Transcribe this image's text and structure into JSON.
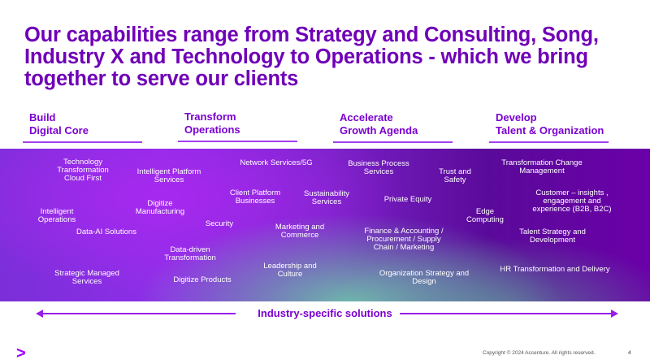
{
  "title": "Our capabilities range  from Strategy and Consulting, Song, Industry X and Technology to Operations -  which we bring together to serve our clients",
  "columns": [
    {
      "label": "Build\nDigital Core"
    },
    {
      "label": "Transform\nOperations"
    },
    {
      "label": "Accelerate\nGrowth Agenda"
    },
    {
      "label": "Develop\nTalent & Organization"
    }
  ],
  "capabilities": [
    "Technology\nTransformation\nCloud First",
    "Intelligent Platform\nServices",
    "Network Services/5G",
    "Business Process\nServices",
    "Trust and\nSafety",
    "Transformation Change\nManagement",
    "Digitize\nManufacturing",
    "Client Platform\nBusinesses",
    "Sustainability\nServices",
    "Private Equity",
    "Customer – insights ,\nengagement and\nexperience (B2B, B2C)",
    "Intelligent\nOperations",
    "Edge\nComputing",
    "Security",
    "Data-AI Solutions",
    "Marketing and\nCommerce",
    "Finance & Accounting /\nProcurement / Supply\nChain / Marketing",
    "Talent Strategy and\nDevelopment",
    "Data-driven\nTransformation",
    "Leadership and\nCulture",
    "Organization Strategy and\nDesign",
    "HR Transformation and Delivery",
    "Strategic Managed\nServices",
    "Digitize Products"
  ],
  "industry_solutions": "Industry-specific solutions",
  "logo": ">",
  "copyright": "Copyright © 2024 Accenture. All rights reserved.",
  "page_number": "4",
  "colors": {
    "accent": "#7000b8",
    "brand": "#a100ff"
  }
}
